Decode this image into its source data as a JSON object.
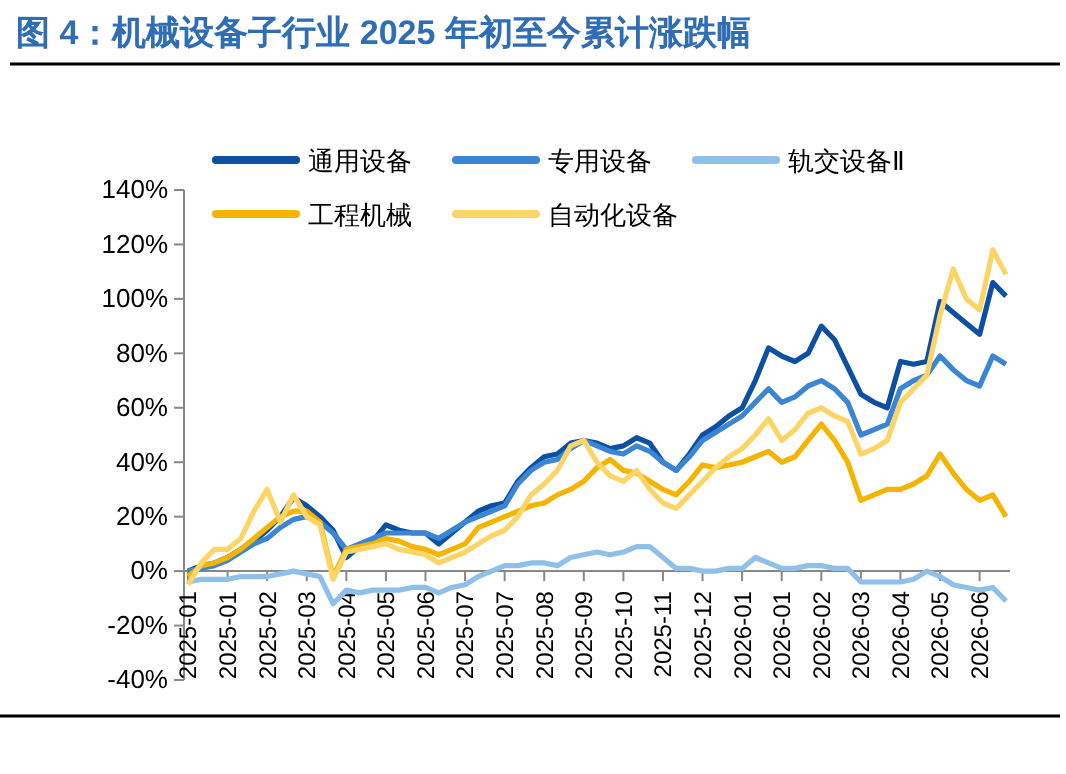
{
  "chart_data": {
    "type": "line",
    "title": "图 4：机械设备子行业 2025 年初至今累计涨跌幅",
    "categories": [
      "2025-01",
      null,
      null,
      "2025-01",
      null,
      null,
      "2025-02",
      null,
      null,
      "2025-03",
      null,
      null,
      "2025-04",
      null,
      null,
      "2025-05",
      null,
      null,
      "2025-06",
      null,
      null,
      "2025-07",
      null,
      null,
      "2025-07",
      null,
      null,
      "2025-08",
      null,
      null,
      "2025-09",
      null,
      null,
      "2025-10",
      null,
      null,
      "2025-11",
      null,
      null,
      "2025-12",
      null,
      null,
      "2026-01",
      null,
      null,
      "2026-01",
      null,
      null,
      "2026-02",
      null,
      null,
      "2026-03",
      null,
      null,
      "2026-04",
      null,
      null,
      "2026-05",
      null,
      null,
      "2026-06",
      null,
      null
    ],
    "series": [
      {
        "name": "通用设备",
        "color": "#0d4fa3",
        "values": [
          0,
          2,
          3,
          5,
          8,
          11,
          15,
          20,
          27,
          24,
          20,
          15,
          5,
          9,
          11,
          17,
          15,
          14,
          14,
          10,
          14,
          18,
          22,
          24,
          25,
          33,
          38,
          42,
          43,
          47,
          48,
          47,
          45,
          46,
          49,
          47,
          40,
          37,
          43,
          50,
          53,
          57,
          60,
          70,
          82,
          79,
          77,
          80,
          90,
          85,
          75,
          65,
          62,
          60,
          77,
          76,
          77,
          99,
          95,
          91,
          87,
          106,
          101
        ]
      },
      {
        "name": "专用设备",
        "color": "#3a86d4",
        "values": [
          0,
          1,
          2,
          4,
          7,
          10,
          12,
          16,
          19,
          20,
          18,
          14,
          8,
          10,
          12,
          14,
          14,
          14,
          14,
          12,
          15,
          18,
          20,
          22,
          24,
          32,
          37,
          40,
          41,
          45,
          48,
          46,
          44,
          43,
          46,
          44,
          40,
          37,
          42,
          48,
          51,
          54,
          57,
          62,
          67,
          62,
          64,
          68,
          70,
          67,
          62,
          50,
          52,
          54,
          67,
          70,
          72,
          79,
          74,
          70,
          68,
          79,
          76
        ]
      },
      {
        "name": "轨交设备Ⅱ",
        "color": "#8ec0ea",
        "values": [
          -4,
          -3,
          -3,
          -3,
          -2,
          -2,
          -2,
          -1,
          0,
          -1,
          -2,
          -12,
          -7,
          -8,
          -7,
          -7,
          -7,
          -6,
          -6,
          -8,
          -6,
          -5,
          -2,
          0,
          2,
          2,
          3,
          3,
          2,
          5,
          6,
          7,
          6,
          7,
          9,
          9,
          5,
          1,
          1,
          0,
          0,
          1,
          1,
          5,
          3,
          1,
          1,
          2,
          2,
          1,
          1,
          -4,
          -4,
          -4,
          -4,
          -3,
          0,
          -2,
          -5,
          -6,
          -7,
          -6,
          -11
        ]
      },
      {
        "name": "工程机械",
        "color": "#f5b400",
        "values": [
          -2,
          2,
          3,
          5,
          8,
          12,
          16,
          20,
          22,
          22,
          18,
          -2,
          8,
          9,
          10,
          12,
          11,
          9,
          8,
          6,
          8,
          10,
          16,
          18,
          20,
          22,
          24,
          25,
          28,
          30,
          33,
          38,
          41,
          37,
          36,
          33,
          30,
          28,
          33,
          39,
          38,
          39,
          40,
          42,
          44,
          40,
          42,
          48,
          54,
          48,
          40,
          26,
          28,
          30,
          30,
          32,
          35,
          43,
          36,
          30,
          26,
          28,
          20
        ]
      },
      {
        "name": "自动化设备",
        "color": "#fdd567",
        "values": [
          -5,
          3,
          8,
          8,
          12,
          22,
          30,
          18,
          28,
          20,
          17,
          -3,
          7,
          8,
          9,
          10,
          8,
          7,
          6,
          3,
          5,
          7,
          10,
          13,
          15,
          20,
          28,
          32,
          37,
          46,
          48,
          40,
          35,
          33,
          37,
          30,
          25,
          23,
          28,
          33,
          38,
          42,
          45,
          50,
          56,
          48,
          52,
          58,
          60,
          57,
          55,
          43,
          45,
          48,
          62,
          67,
          72,
          94,
          111,
          100,
          96,
          118,
          109
        ]
      }
    ],
    "ylim": [
      -40,
      140
    ],
    "yticks": [
      {
        "value": -40,
        "label": "-40%"
      },
      {
        "value": -20,
        "label": "-20%"
      },
      {
        "value": 0,
        "label": "0%"
      },
      {
        "value": 20,
        "label": "20%"
      },
      {
        "value": 40,
        "label": "40%"
      },
      {
        "value": 60,
        "label": "60%"
      },
      {
        "value": 80,
        "label": "80%"
      },
      {
        "value": 100,
        "label": "100%"
      },
      {
        "value": 120,
        "label": "120%"
      },
      {
        "value": 140,
        "label": "140%"
      }
    ],
    "grid": false,
    "legend": "top",
    "marker": "none",
    "line_style": "solid"
  }
}
